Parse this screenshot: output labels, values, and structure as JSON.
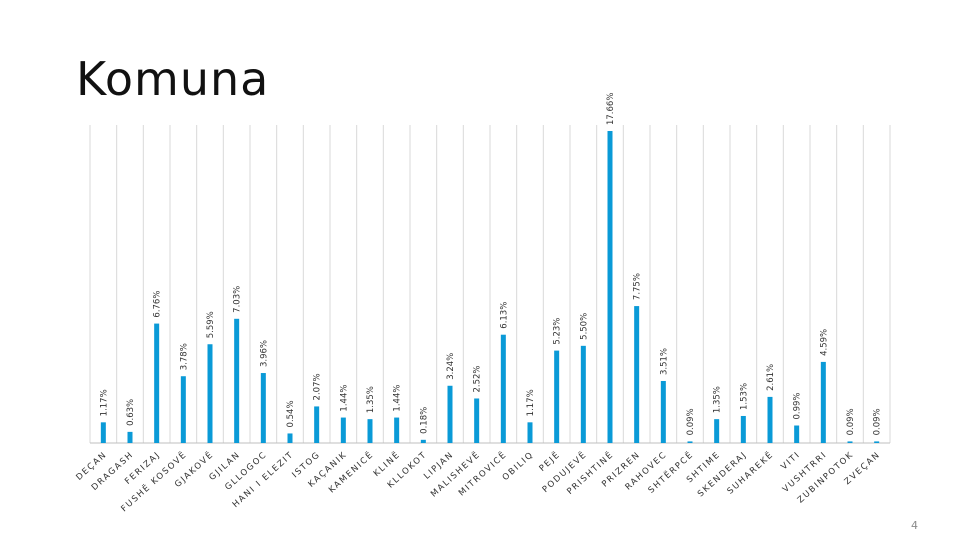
{
  "title": "Komuna",
  "page_number": "4",
  "colors": {
    "bar": "#0a9ad7",
    "grid": "#d9d9d9",
    "background": "#ffffff"
  },
  "chart_data": {
    "type": "bar",
    "title": "",
    "xlabel": "",
    "ylabel": "",
    "grid": "vertical",
    "categories": [
      "DEÇAN",
      "DRAGASH",
      "FERIZAJ",
      "FUSHË KOSOVË",
      "GJAKOVË",
      "GJILAN",
      "GLLOGOC",
      "HANI I ELEZIT",
      "ISTOG",
      "KAÇANIK",
      "KAMENICË",
      "KLINË",
      "KLLOKOT",
      "LIPJAN",
      "MALISHEVË",
      "MITROVICË",
      "OBILIQ",
      "PEJË",
      "PODUJEVË",
      "PRISHTINË",
      "PRIZREN",
      "RAHOVEC",
      "SHTËRPCË",
      "SHTIME",
      "SKENDERAJ",
      "SUHAREKË",
      "VITI",
      "VUSHTRRI",
      "ZUBINPOTOK",
      "ZVEÇAN"
    ],
    "values": [
      1.17,
      0.63,
      6.76,
      3.78,
      5.59,
      7.03,
      3.96,
      0.54,
      2.07,
      1.44,
      1.35,
      1.44,
      0.18,
      3.24,
      2.52,
      6.13,
      1.17,
      5.23,
      5.5,
      17.66,
      7.75,
      3.51,
      0.09,
      1.35,
      1.53,
      2.61,
      0.99,
      4.59,
      0.09,
      0.09
    ],
    "labels": [
      "1.17%",
      "0.63%",
      "6.76%",
      "3.78%",
      "5.59%",
      "7.03%",
      "3.96%",
      "0.54%",
      "2.07%",
      "1.44%",
      "1.35%",
      "1.44%",
      "0.18%",
      "3.24%",
      "2.52%",
      "6.13%",
      "1.17%",
      "5.23%",
      "5.50%",
      "17.66%",
      "7.75%",
      "3.51%",
      "0.09%",
      "1.35%",
      "1.53%",
      "2.61%",
      "0.99%",
      "4.59%",
      "0.09%",
      "0.09%"
    ]
  }
}
